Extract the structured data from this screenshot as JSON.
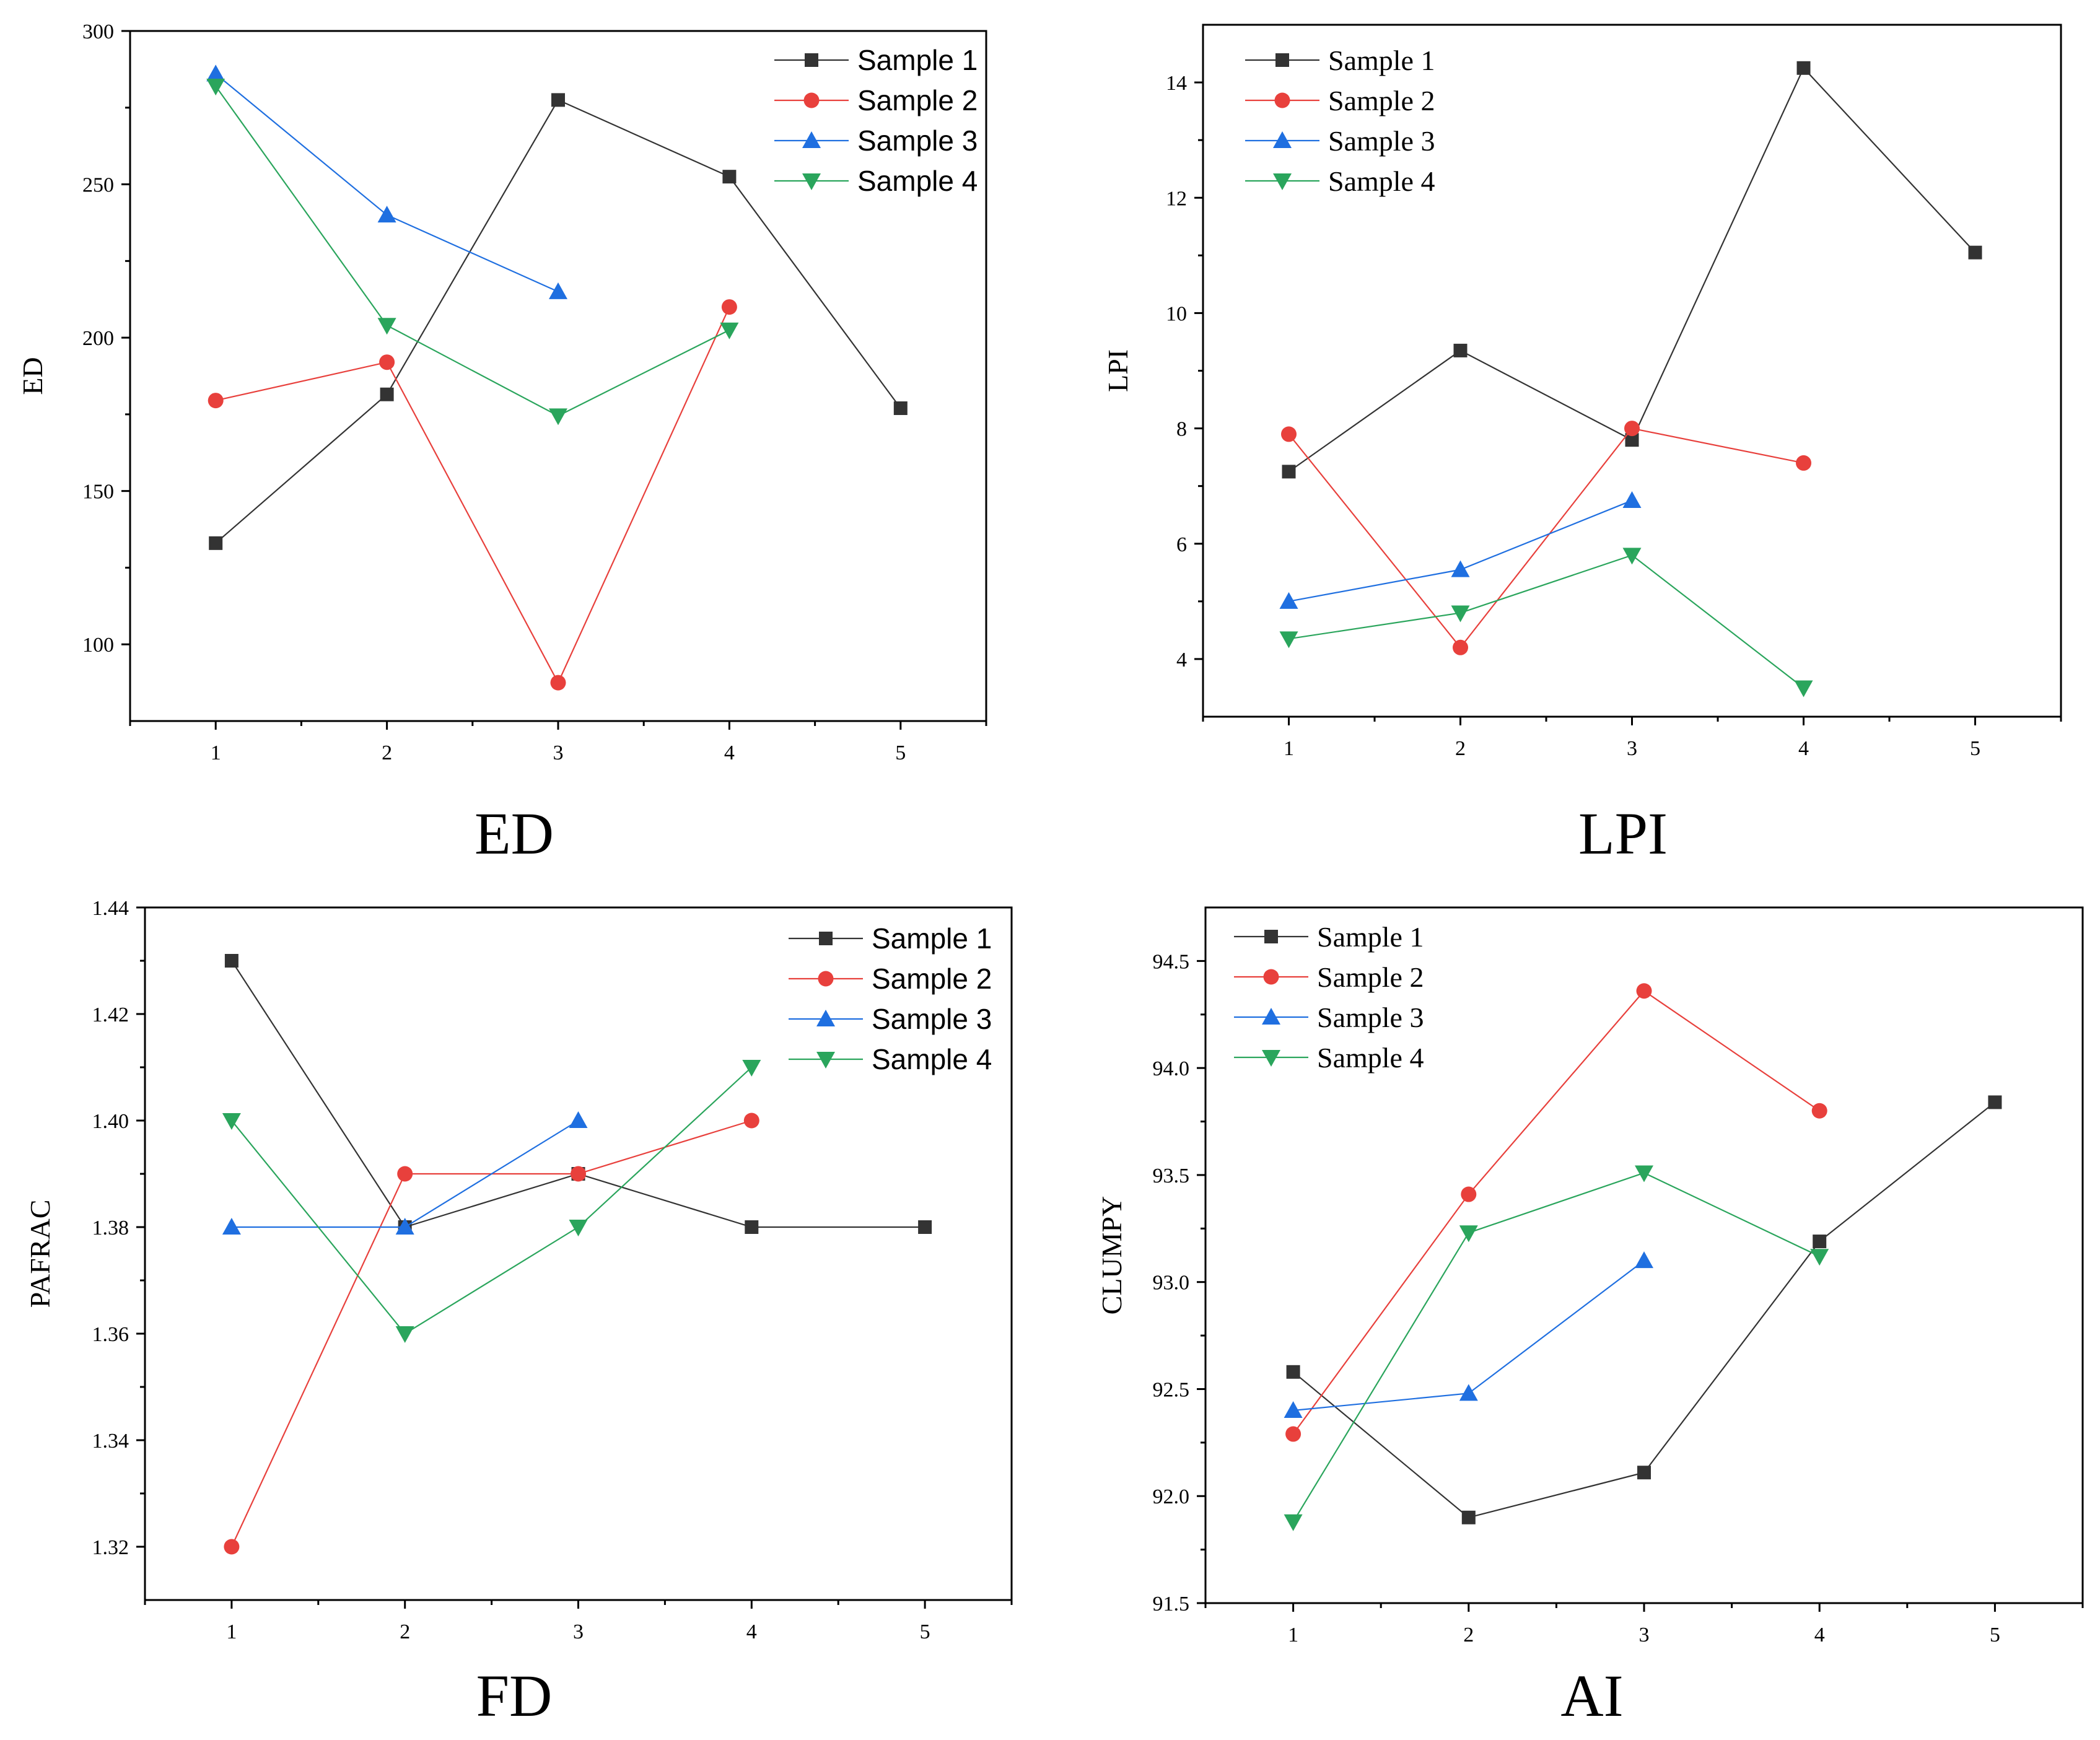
{
  "figure_title": "",
  "chart_data": [
    {
      "type": "line",
      "caption": "ED",
      "title": "",
      "xlabel": "",
      "ylabel": "ED",
      "xlim": [
        0.5,
        5.5
      ],
      "ylim": [
        75,
        300
      ],
      "xticks": [
        "1",
        "2",
        "3",
        "4",
        "5"
      ],
      "yticks": [
        "100",
        "150",
        "200",
        "250",
        "300"
      ],
      "legend_position": "top-right",
      "series": [
        {
          "name": "Sample 1",
          "marker": "square",
          "color": "#333333",
          "x": [
            1,
            2,
            3,
            4,
            5
          ],
          "values": [
            133,
            181.5,
            277.5,
            252.5,
            177
          ]
        },
        {
          "name": "Sample 2",
          "marker": "circle",
          "color": "#e8403c",
          "x": [
            1,
            2,
            3,
            4
          ],
          "values": [
            179.5,
            192,
            87.5,
            210
          ]
        },
        {
          "name": "Sample 3",
          "marker": "triangle-up",
          "color": "#1f6fe0",
          "x": [
            1,
            2,
            3
          ],
          "values": [
            286,
            240,
            215
          ]
        },
        {
          "name": "Sample 4",
          "marker": "triangle-down",
          "color": "#2aa55c",
          "x": [
            1,
            2,
            3,
            4
          ],
          "values": [
            282,
            204,
            174.5,
            202.5
          ]
        }
      ]
    },
    {
      "type": "line",
      "caption": "LPI",
      "title": "",
      "xlabel": "",
      "ylabel": "LPI",
      "xlim": [
        0.5,
        5.5
      ],
      "ylim": [
        3,
        15
      ],
      "xticks": [
        "1",
        "2",
        "3",
        "4",
        "5"
      ],
      "yticks": [
        "4",
        "6",
        "8",
        "10",
        "12",
        "14"
      ],
      "legend_position": "top-left",
      "series": [
        {
          "name": "Sample 1",
          "marker": "square",
          "color": "#333333",
          "x": [
            1,
            2,
            3,
            4,
            5
          ],
          "values": [
            7.25,
            9.35,
            7.8,
            14.25,
            11.05
          ]
        },
        {
          "name": "Sample 2",
          "marker": "circle",
          "color": "#e8403c",
          "x": [
            1,
            2,
            3,
            4
          ],
          "values": [
            7.9,
            4.2,
            8.0,
            7.4
          ]
        },
        {
          "name": "Sample 3",
          "marker": "triangle-up",
          "color": "#1f6fe0",
          "x": [
            1,
            2,
            3
          ],
          "values": [
            5.0,
            5.55,
            6.75
          ]
        },
        {
          "name": "Sample 4",
          "marker": "triangle-down",
          "color": "#2aa55c",
          "x": [
            1,
            2,
            3,
            4
          ],
          "values": [
            4.35,
            4.8,
            5.8,
            3.5
          ]
        }
      ]
    },
    {
      "type": "line",
      "caption": "FD",
      "title": "",
      "xlabel": "",
      "ylabel": "PAFRAC",
      "xlim": [
        0.5,
        5.5
      ],
      "ylim": [
        1.31,
        1.44
      ],
      "xticks": [
        "1",
        "2",
        "3",
        "4",
        "5"
      ],
      "yticks": [
        "1.32",
        "1.34",
        "1.36",
        "1.38",
        "1.40",
        "1.42",
        "1.44"
      ],
      "legend_position": "top-right",
      "series": [
        {
          "name": "Sample 1",
          "marker": "square",
          "color": "#333333",
          "x": [
            1,
            2,
            3,
            4,
            5
          ],
          "values": [
            1.43,
            1.38,
            1.39,
            1.38,
            1.38
          ]
        },
        {
          "name": "Sample 2",
          "marker": "circle",
          "color": "#e8403c",
          "x": [
            1,
            2,
            3,
            4
          ],
          "values": [
            1.32,
            1.39,
            1.39,
            1.4
          ]
        },
        {
          "name": "Sample 3",
          "marker": "triangle-up",
          "color": "#1f6fe0",
          "x": [
            1,
            2,
            3
          ],
          "values": [
            1.38,
            1.38,
            1.4
          ]
        },
        {
          "name": "Sample 4",
          "marker": "triangle-down",
          "color": "#2aa55c",
          "x": [
            1,
            2,
            3,
            4
          ],
          "values": [
            1.4,
            1.36,
            1.38,
            1.41
          ]
        }
      ]
    },
    {
      "type": "line",
      "caption": "AI",
      "title": "",
      "xlabel": "",
      "ylabel": "CLUMPY",
      "xlim": [
        0.5,
        5.5
      ],
      "ylim": [
        91.5,
        94.75
      ],
      "xticks": [
        "1",
        "2",
        "3",
        "4",
        "5"
      ],
      "yticks": [
        "91.5",
        "92.0",
        "92.5",
        "93.0",
        "93.5",
        "94.0",
        "94.5"
      ],
      "legend_position": "top-left",
      "series": [
        {
          "name": "Sample 1",
          "marker": "square",
          "color": "#333333",
          "x": [
            1,
            2,
            3,
            4,
            5
          ],
          "values": [
            92.58,
            91.9,
            92.11,
            93.19,
            93.84
          ]
        },
        {
          "name": "Sample 2",
          "marker": "circle",
          "color": "#e8403c",
          "x": [
            1,
            2,
            3,
            4
          ],
          "values": [
            92.29,
            93.41,
            94.36,
            93.8
          ]
        },
        {
          "name": "Sample 3",
          "marker": "triangle-up",
          "color": "#1f6fe0",
          "x": [
            1,
            2,
            3
          ],
          "values": [
            92.4,
            92.48,
            93.1
          ]
        },
        {
          "name": "Sample 4",
          "marker": "triangle-down",
          "color": "#2aa55c",
          "x": [
            1,
            2,
            3,
            4
          ],
          "values": [
            91.88,
            93.23,
            93.51,
            93.12
          ]
        }
      ]
    }
  ]
}
